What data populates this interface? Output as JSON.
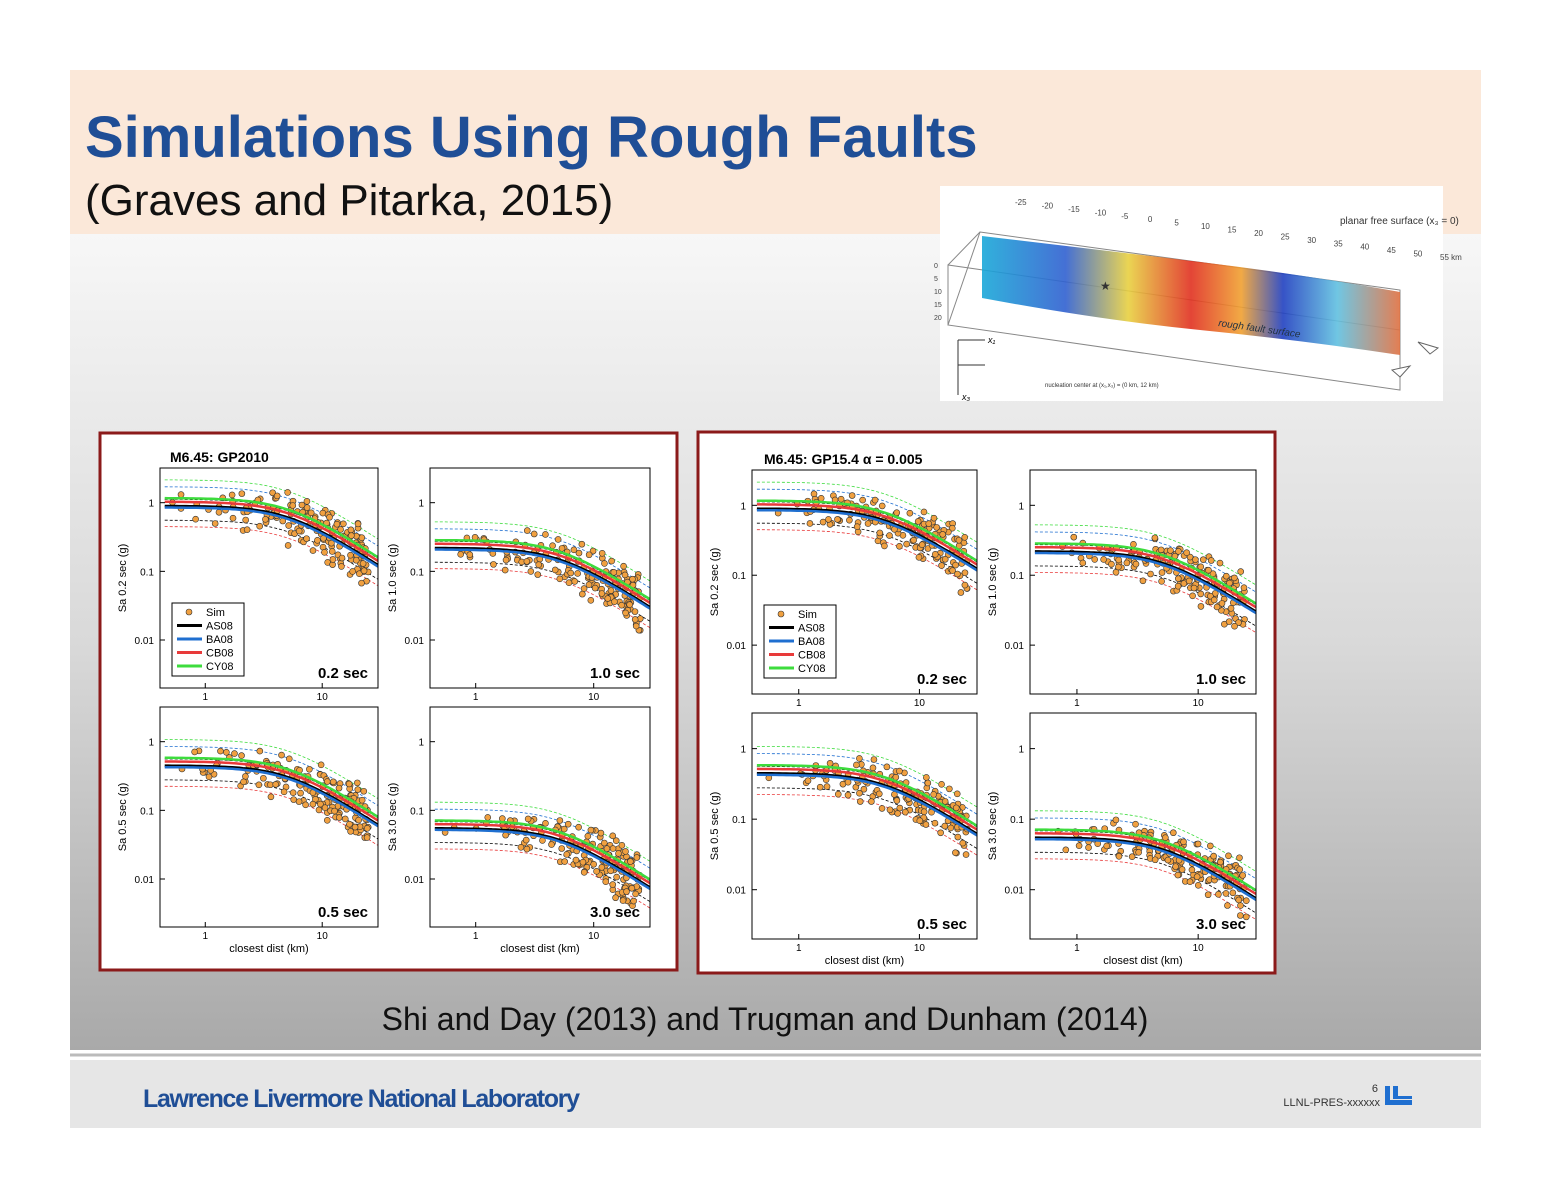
{
  "header": {
    "title": "Simulations Using Rough Faults",
    "subtitle": "(Graves and Pitarka, 2015)"
  },
  "fault_figure": {
    "ticks": [
      "-25",
      "-20",
      "-15",
      "-10",
      "-5",
      "0",
      "5",
      "10",
      "15",
      "20",
      "25",
      "30",
      "35",
      "40",
      "45",
      "50",
      "55 km"
    ],
    "depth_ticks": [
      "0",
      "5",
      "10",
      "15",
      "20"
    ],
    "surface_label": "planar free surface (x₃ = 0)",
    "fault_label": "rough fault surface",
    "nucleation_label": "nucleation center at (x₁,x₃) = (0 km, 12 km)",
    "axis_x1": "x₁",
    "axis_x3": "x₃"
  },
  "legend": [
    {
      "name": "Sim",
      "color": "#f0a040"
    },
    {
      "name": "AS08",
      "color": "#000000"
    },
    {
      "name": "BA08",
      "color": "#1f6fd0"
    },
    {
      "name": "CB08",
      "color": "#e83a3a"
    },
    {
      "name": "CY08",
      "color": "#3ddc3d"
    }
  ],
  "panels": [
    {
      "title": "M6.45: GP2010",
      "plots": [
        {
          "ylabel": "Sa 0.2 sec (g)",
          "period": "0.2 sec"
        },
        {
          "ylabel": "Sa 1.0 sec (g)",
          "period": "1.0 sec"
        },
        {
          "ylabel": "Sa 0.5 sec (g)",
          "period": "0.5 sec"
        },
        {
          "ylabel": "Sa 3.0 sec (g)",
          "period": "3.0 sec"
        }
      ]
    },
    {
      "title": "M6.45: GP15.4 α = 0.005",
      "plots": [
        {
          "ylabel": "Sa 0.2 sec (g)",
          "period": "0.2 sec"
        },
        {
          "ylabel": "Sa 1.0 sec (g)",
          "period": "1.0 sec"
        },
        {
          "ylabel": "Sa 0.5 sec (g)",
          "period": "0.5 sec"
        },
        {
          "ylabel": "Sa 3.0 sec (g)",
          "period": "3.0 sec"
        }
      ]
    }
  ],
  "yticks": [
    "1",
    "0.1",
    "0.01"
  ],
  "xticks": [
    "1",
    "10"
  ],
  "xlabel": "closest dist (km)",
  "caption": "Shi and Day (2013) and Trugman and Dunham (2014)",
  "footer": {
    "org": "Lawrence Livermore National Laboratory",
    "page": "6",
    "code": "LLNL-PRES-xxxxxx"
  }
}
